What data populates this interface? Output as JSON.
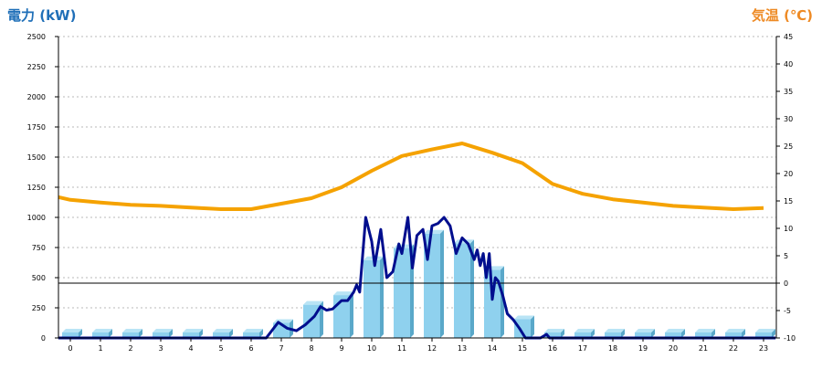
{
  "chart_data": {
    "type": "bar",
    "left_axis_label": "電力 (kW)",
    "right_axis_label": "気温 (℃)",
    "x_ticks": [
      "0",
      "1",
      "2",
      "3",
      "4",
      "5",
      "6",
      "7",
      "8",
      "9",
      "10",
      "11",
      "12",
      "13",
      "14",
      "15",
      "16",
      "17",
      "18",
      "19",
      "20",
      "21",
      "22",
      "23"
    ],
    "y_left": {
      "min": 0,
      "max": 2500,
      "ticks": [
        "0",
        "250",
        "500",
        "750",
        "1000",
        "1250",
        "1500",
        "1750",
        "2000",
        "2250",
        "2500"
      ]
    },
    "y_right": {
      "min": -10,
      "max": 45,
      "ticks": [
        "-10",
        "-5",
        "0",
        "5",
        "10",
        "15",
        "20",
        "25",
        "30",
        "35",
        "40",
        "45"
      ]
    },
    "grid": true,
    "bar_series": {
      "unit": "kW",
      "values": [
        0,
        0,
        0,
        0,
        0,
        0,
        0,
        80,
        230,
        310,
        600,
        700,
        820,
        740,
        520,
        110,
        0,
        0,
        0,
        0,
        0,
        0,
        0,
        0
      ],
      "color": "#8fd1ee",
      "side_color": "#5aa8c9"
    },
    "power_line": {
      "unit": "kW",
      "color": "#000e8e",
      "points": [
        [
          -0.4,
          0
        ],
        [
          6.5,
          0
        ],
        [
          6.9,
          130
        ],
        [
          7.2,
          80
        ],
        [
          7.5,
          60
        ],
        [
          7.8,
          110
        ],
        [
          8.1,
          180
        ],
        [
          8.3,
          260
        ],
        [
          8.5,
          230
        ],
        [
          8.7,
          240
        ],
        [
          9.0,
          310
        ],
        [
          9.2,
          310
        ],
        [
          9.4,
          380
        ],
        [
          9.5,
          440
        ],
        [
          9.6,
          380
        ],
        [
          9.8,
          1000
        ],
        [
          10.0,
          800
        ],
        [
          10.1,
          600
        ],
        [
          10.3,
          900
        ],
        [
          10.5,
          500
        ],
        [
          10.7,
          550
        ],
        [
          10.9,
          780
        ],
        [
          11.0,
          700
        ],
        [
          11.2,
          1000
        ],
        [
          11.35,
          580
        ],
        [
          11.5,
          850
        ],
        [
          11.7,
          900
        ],
        [
          11.85,
          650
        ],
        [
          12.0,
          930
        ],
        [
          12.2,
          950
        ],
        [
          12.4,
          1000
        ],
        [
          12.6,
          930
        ],
        [
          12.8,
          700
        ],
        [
          13.0,
          830
        ],
        [
          13.2,
          780
        ],
        [
          13.4,
          650
        ],
        [
          13.5,
          730
        ],
        [
          13.6,
          600
        ],
        [
          13.7,
          700
        ],
        [
          13.8,
          500
        ],
        [
          13.9,
          700
        ],
        [
          14.0,
          320
        ],
        [
          14.1,
          500
        ],
        [
          14.2,
          470
        ],
        [
          14.35,
          350
        ],
        [
          14.5,
          200
        ],
        [
          14.7,
          150
        ],
        [
          14.9,
          80
        ],
        [
          15.1,
          0
        ],
        [
          15.6,
          0
        ],
        [
          15.8,
          30
        ],
        [
          15.9,
          0
        ],
        [
          23.4,
          0
        ]
      ]
    },
    "temperature_line": {
      "unit": "℃",
      "color": "#f5a200",
      "x": [
        -0.4,
        0,
        1,
        2,
        3,
        4,
        5,
        6,
        7,
        8,
        9,
        10,
        11,
        12,
        13,
        14,
        15,
        16,
        17,
        18,
        19,
        20,
        21,
        22,
        23
      ],
      "values": [
        15.7,
        15.2,
        14.7,
        14.3,
        14.1,
        13.8,
        13.5,
        13.5,
        14.5,
        15.5,
        17.5,
        20.5,
        23.2,
        24.4,
        25.5,
        23.8,
        21.9,
        18.1,
        16.3,
        15.3,
        14.7,
        14.1,
        13.8,
        13.5,
        13.7
      ]
    }
  }
}
